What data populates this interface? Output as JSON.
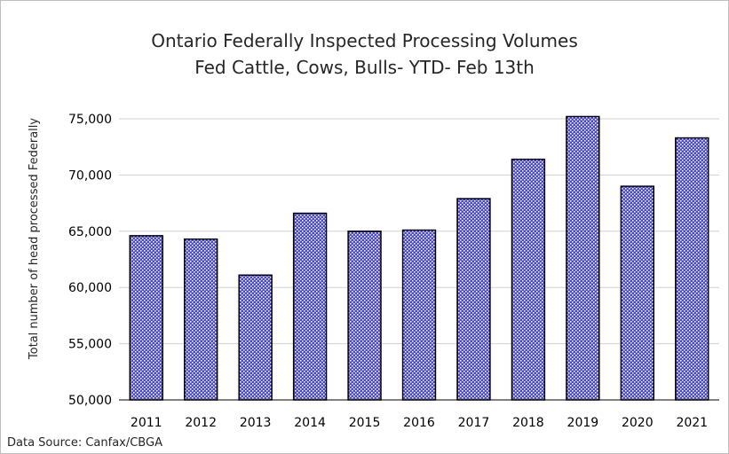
{
  "chart_data": {
    "type": "bar",
    "title": "Ontario Federally Inspected Processing Volumes",
    "subtitle": "Fed Cattle, Cows, Bulls- YTD- Feb 13th",
    "xlabel": "",
    "ylabel": "Total number of head processed Federally",
    "categories": [
      "2011",
      "2012",
      "2013",
      "2014",
      "2015",
      "2016",
      "2017",
      "2018",
      "2019",
      "2020",
      "2021"
    ],
    "values": [
      64600,
      64300,
      61100,
      66600,
      65000,
      65100,
      67900,
      71400,
      75200,
      69000,
      73300
    ],
    "ylim": [
      50000,
      75000
    ],
    "yticks": [
      50000,
      55000,
      60000,
      65000,
      70000,
      75000
    ],
    "ytick_labels": [
      "50,000",
      "55,000",
      "60,000",
      "65,000",
      "70,000",
      "75,000"
    ],
    "grid": true,
    "bar_color": "#4b4bd6",
    "source": "Data Source: Canfax/CBGA"
  }
}
